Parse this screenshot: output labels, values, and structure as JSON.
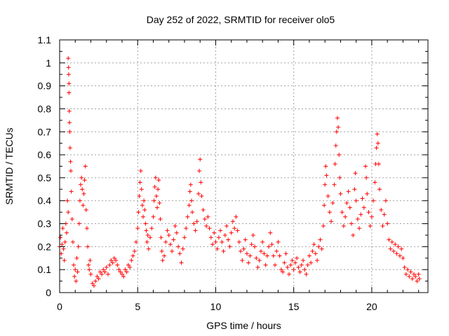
{
  "chart_data": {
    "type": "scatter",
    "title": "Day 252 of 2022, SRMTID for receiver olo5",
    "xlabel": "GPS time / hours",
    "ylabel": "SRMTID / TECUs",
    "xlim": [
      0,
      23.6
    ],
    "ylim": [
      0,
      1.1
    ],
    "xticks": [
      0,
      5,
      10,
      15,
      20
    ],
    "xtick_labels": [
      "0",
      "5",
      "10",
      "15",
      "20"
    ],
    "yticks": [
      0,
      0.1,
      0.2,
      0.3,
      0.4,
      0.5,
      0.6,
      0.7,
      0.8,
      0.9,
      1,
      1.1
    ],
    "ytick_labels": [
      "0",
      "0.1",
      "0.2",
      "0.3",
      "0.4",
      "0.5",
      "0.6",
      "0.7",
      "0.8",
      "0.9",
      "1",
      "1.1"
    ],
    "grid": true,
    "marker": "+",
    "color": "#ff0000",
    "series": [
      {
        "name": "SRMTID",
        "points": [
          [
            0.0,
            0.2
          ],
          [
            0.05,
            0.24
          ],
          [
            0.1,
            0.17
          ],
          [
            0.15,
            0.21
          ],
          [
            0.2,
            0.28
          ],
          [
            0.25,
            0.19
          ],
          [
            0.3,
            0.14
          ],
          [
            0.35,
            0.22
          ],
          [
            0.4,
            0.3
          ],
          [
            0.45,
            0.26
          ],
          [
            0.5,
            0.4
          ],
          [
            0.55,
            0.35
          ],
          [
            0.55,
            1.02
          ],
          [
            0.57,
            0.98
          ],
          [
            0.58,
            0.95
          ],
          [
            0.6,
            0.91
          ],
          [
            0.6,
            0.87
          ],
          [
            0.62,
            0.79
          ],
          [
            0.63,
            0.74
          ],
          [
            0.65,
            0.7
          ],
          [
            0.67,
            0.63
          ],
          [
            0.7,
            0.57
          ],
          [
            0.72,
            0.53
          ],
          [
            0.75,
            0.44
          ],
          [
            0.8,
            0.32
          ],
          [
            0.85,
            0.22
          ],
          [
            0.9,
            0.12
          ],
          [
            0.95,
            0.07
          ],
          [
            1.0,
            0.1
          ],
          [
            1.05,
            0.05
          ],
          [
            1.1,
            0.15
          ],
          [
            1.15,
            0.09
          ],
          [
            1.2,
            0.2
          ],
          [
            1.25,
            0.3
          ],
          [
            1.3,
            0.4
          ],
          [
            1.35,
            0.47
          ],
          [
            1.4,
            0.5
          ],
          [
            1.45,
            0.45
          ],
          [
            1.5,
            0.38
          ],
          [
            1.55,
            0.43
          ],
          [
            1.6,
            0.49
          ],
          [
            1.65,
            0.55
          ],
          [
            1.7,
            0.36
          ],
          [
            1.75,
            0.28
          ],
          [
            1.8,
            0.2
          ],
          [
            1.85,
            0.12
          ],
          [
            1.9,
            0.1
          ],
          [
            1.95,
            0.14
          ],
          [
            2.0,
            0.08
          ],
          [
            2.1,
            0.04
          ],
          [
            2.2,
            0.03
          ],
          [
            2.3,
            0.05
          ],
          [
            2.4,
            0.07
          ],
          [
            2.5,
            0.06
          ],
          [
            2.6,
            0.09
          ],
          [
            2.7,
            0.08
          ],
          [
            2.8,
            0.1
          ],
          [
            2.9,
            0.09
          ],
          [
            3.0,
            0.11
          ],
          [
            3.1,
            0.08
          ],
          [
            3.2,
            0.12
          ],
          [
            3.3,
            0.14
          ],
          [
            3.4,
            0.13
          ],
          [
            3.5,
            0.15
          ],
          [
            3.6,
            0.14
          ],
          [
            3.7,
            0.12
          ],
          [
            3.8,
            0.1
          ],
          [
            3.9,
            0.09
          ],
          [
            4.0,
            0.08
          ],
          [
            4.1,
            0.07
          ],
          [
            4.2,
            0.1
          ],
          [
            4.3,
            0.09
          ],
          [
            4.4,
            0.12
          ],
          [
            4.5,
            0.11
          ],
          [
            4.6,
            0.14
          ],
          [
            4.7,
            0.16
          ],
          [
            4.8,
            0.18
          ],
          [
            4.9,
            0.22
          ],
          [
            5.0,
            0.28
          ],
          [
            5.05,
            0.35
          ],
          [
            5.1,
            0.42
          ],
          [
            5.15,
            0.48
          ],
          [
            5.2,
            0.53
          ],
          [
            5.25,
            0.45
          ],
          [
            5.3,
            0.38
          ],
          [
            5.35,
            0.33
          ],
          [
            5.4,
            0.4
          ],
          [
            5.45,
            0.36
          ],
          [
            5.5,
            0.3
          ],
          [
            5.55,
            0.27
          ],
          [
            5.6,
            0.22
          ],
          [
            5.65,
            0.25
          ],
          [
            5.7,
            0.19
          ],
          [
            5.8,
            0.24
          ],
          [
            5.9,
            0.28
          ],
          [
            6.0,
            0.33
          ],
          [
            6.05,
            0.4
          ],
          [
            6.1,
            0.46
          ],
          [
            6.15,
            0.5
          ],
          [
            6.2,
            0.42
          ],
          [
            6.25,
            0.37
          ],
          [
            6.3,
            0.45
          ],
          [
            6.35,
            0.49
          ],
          [
            6.4,
            0.39
          ],
          [
            6.45,
            0.32
          ],
          [
            6.5,
            0.24
          ],
          [
            6.55,
            0.18
          ],
          [
            6.6,
            0.14
          ],
          [
            6.7,
            0.16
          ],
          [
            6.8,
            0.22
          ],
          [
            6.9,
            0.27
          ],
          [
            7.0,
            0.25
          ],
          [
            7.1,
            0.21
          ],
          [
            7.2,
            0.18
          ],
          [
            7.3,
            0.23
          ],
          [
            7.4,
            0.29
          ],
          [
            7.5,
            0.26
          ],
          [
            7.6,
            0.2
          ],
          [
            7.7,
            0.17
          ],
          [
            7.8,
            0.13
          ],
          [
            7.9,
            0.19
          ],
          [
            8.0,
            0.24
          ],
          [
            8.1,
            0.28
          ],
          [
            8.2,
            0.33
          ],
          [
            8.3,
            0.38
          ],
          [
            8.35,
            0.44
          ],
          [
            8.4,
            0.47
          ],
          [
            8.45,
            0.4
          ],
          [
            8.5,
            0.35
          ],
          [
            8.6,
            0.3
          ],
          [
            8.7,
            0.27
          ],
          [
            8.8,
            0.31
          ],
          [
            8.9,
            0.43
          ],
          [
            8.95,
            0.53
          ],
          [
            9.0,
            0.58
          ],
          [
            9.05,
            0.48
          ],
          [
            9.1,
            0.42
          ],
          [
            9.2,
            0.36
          ],
          [
            9.3,
            0.32
          ],
          [
            9.4,
            0.29
          ],
          [
            9.5,
            0.33
          ],
          [
            9.6,
            0.28
          ],
          [
            9.7,
            0.24
          ],
          [
            9.8,
            0.21
          ],
          [
            9.9,
            0.26
          ],
          [
            10.0,
            0.22
          ],
          [
            10.1,
            0.19
          ],
          [
            10.2,
            0.24
          ],
          [
            10.3,
            0.27
          ],
          [
            10.4,
            0.22
          ],
          [
            10.5,
            0.18
          ],
          [
            10.6,
            0.25
          ],
          [
            10.7,
            0.29
          ],
          [
            10.8,
            0.23
          ],
          [
            10.9,
            0.2
          ],
          [
            11.0,
            0.26
          ],
          [
            11.1,
            0.31
          ],
          [
            11.2,
            0.28
          ],
          [
            11.3,
            0.33
          ],
          [
            11.4,
            0.27
          ],
          [
            11.5,
            0.22
          ],
          [
            11.6,
            0.18
          ],
          [
            11.7,
            0.14
          ],
          [
            11.8,
            0.19
          ],
          [
            11.9,
            0.23
          ],
          [
            12.0,
            0.17
          ],
          [
            12.1,
            0.13
          ],
          [
            12.2,
            0.16
          ],
          [
            12.3,
            0.21
          ],
          [
            12.4,
            0.25
          ],
          [
            12.5,
            0.2
          ],
          [
            12.6,
            0.15
          ],
          [
            12.7,
            0.11
          ],
          [
            12.8,
            0.14
          ],
          [
            12.9,
            0.18
          ],
          [
            13.0,
            0.22
          ],
          [
            13.1,
            0.17
          ],
          [
            13.2,
            0.12
          ],
          [
            13.3,
            0.16
          ],
          [
            13.4,
            0.2
          ],
          [
            13.5,
            0.26
          ],
          [
            13.6,
            0.21
          ],
          [
            13.7,
            0.16
          ],
          [
            13.8,
            0.12
          ],
          [
            13.9,
            0.18
          ],
          [
            14.0,
            0.22
          ],
          [
            14.1,
            0.16
          ],
          [
            14.2,
            0.1
          ],
          [
            14.3,
            0.09
          ],
          [
            14.4,
            0.13
          ],
          [
            14.5,
            0.17
          ],
          [
            14.6,
            0.11
          ],
          [
            14.7,
            0.08
          ],
          [
            14.8,
            0.12
          ],
          [
            14.9,
            0.14
          ],
          [
            15.0,
            0.1
          ],
          [
            15.1,
            0.13
          ],
          [
            15.2,
            0.15
          ],
          [
            15.3,
            0.11
          ],
          [
            15.4,
            0.09
          ],
          [
            15.5,
            0.12
          ],
          [
            15.6,
            0.14
          ],
          [
            15.7,
            0.1
          ],
          [
            15.8,
            0.08
          ],
          [
            15.9,
            0.12
          ],
          [
            16.0,
            0.16
          ],
          [
            16.1,
            0.13
          ],
          [
            16.2,
            0.18
          ],
          [
            16.3,
            0.21
          ],
          [
            16.4,
            0.17
          ],
          [
            16.5,
            0.14
          ],
          [
            16.6,
            0.2
          ],
          [
            16.7,
            0.23
          ],
          [
            16.8,
            0.19
          ],
          [
            16.9,
            0.29
          ],
          [
            16.95,
            0.38
          ],
          [
            17.0,
            0.47
          ],
          [
            17.05,
            0.55
          ],
          [
            17.1,
            0.51
          ],
          [
            17.2,
            0.42
          ],
          [
            17.3,
            0.35
          ],
          [
            17.4,
            0.31
          ],
          [
            17.5,
            0.39
          ],
          [
            17.6,
            0.47
          ],
          [
            17.65,
            0.56
          ],
          [
            17.7,
            0.64
          ],
          [
            17.75,
            0.7
          ],
          [
            17.8,
            0.76
          ],
          [
            17.85,
            0.72
          ],
          [
            17.9,
            0.6
          ],
          [
            17.95,
            0.5
          ],
          [
            18.0,
            0.43
          ],
          [
            18.1,
            0.35
          ],
          [
            18.2,
            0.29
          ],
          [
            18.3,
            0.33
          ],
          [
            18.4,
            0.39
          ],
          [
            18.5,
            0.44
          ],
          [
            18.6,
            0.37
          ],
          [
            18.7,
            0.3
          ],
          [
            18.8,
            0.25
          ],
          [
            18.9,
            0.45
          ],
          [
            18.95,
            0.52
          ],
          [
            19.0,
            0.4
          ],
          [
            19.1,
            0.32
          ],
          [
            19.2,
            0.28
          ],
          [
            19.3,
            0.34
          ],
          [
            19.4,
            0.41
          ],
          [
            19.5,
            0.37
          ],
          [
            19.6,
            0.55
          ],
          [
            19.65,
            0.5
          ],
          [
            19.7,
            0.43
          ],
          [
            19.8,
            0.35
          ],
          [
            19.9,
            0.29
          ],
          [
            20.0,
            0.33
          ],
          [
            20.1,
            0.4
          ],
          [
            20.2,
            0.48
          ],
          [
            20.25,
            0.56
          ],
          [
            20.3,
            0.63
          ],
          [
            20.35,
            0.69
          ],
          [
            20.4,
            0.65
          ],
          [
            20.45,
            0.56
          ],
          [
            20.5,
            0.45
          ],
          [
            20.6,
            0.36
          ],
          [
            20.7,
            0.29
          ],
          [
            20.8,
            0.34
          ],
          [
            20.9,
            0.4
          ],
          [
            21.0,
            0.3
          ],
          [
            21.1,
            0.23
          ],
          [
            21.2,
            0.19
          ],
          [
            21.3,
            0.22
          ],
          [
            21.4,
            0.18
          ],
          [
            21.5,
            0.21
          ],
          [
            21.6,
            0.17
          ],
          [
            21.7,
            0.2
          ],
          [
            21.8,
            0.16
          ],
          [
            21.9,
            0.19
          ],
          [
            22.0,
            0.15
          ],
          [
            22.1,
            0.11
          ],
          [
            22.2,
            0.08
          ],
          [
            22.3,
            0.1
          ],
          [
            22.4,
            0.07
          ],
          [
            22.5,
            0.09
          ],
          [
            22.6,
            0.06
          ],
          [
            22.7,
            0.08
          ],
          [
            22.8,
            0.07
          ],
          [
            22.9,
            0.05
          ],
          [
            23.0,
            0.08
          ],
          [
            23.05,
            0.06
          ]
        ]
      }
    ]
  }
}
